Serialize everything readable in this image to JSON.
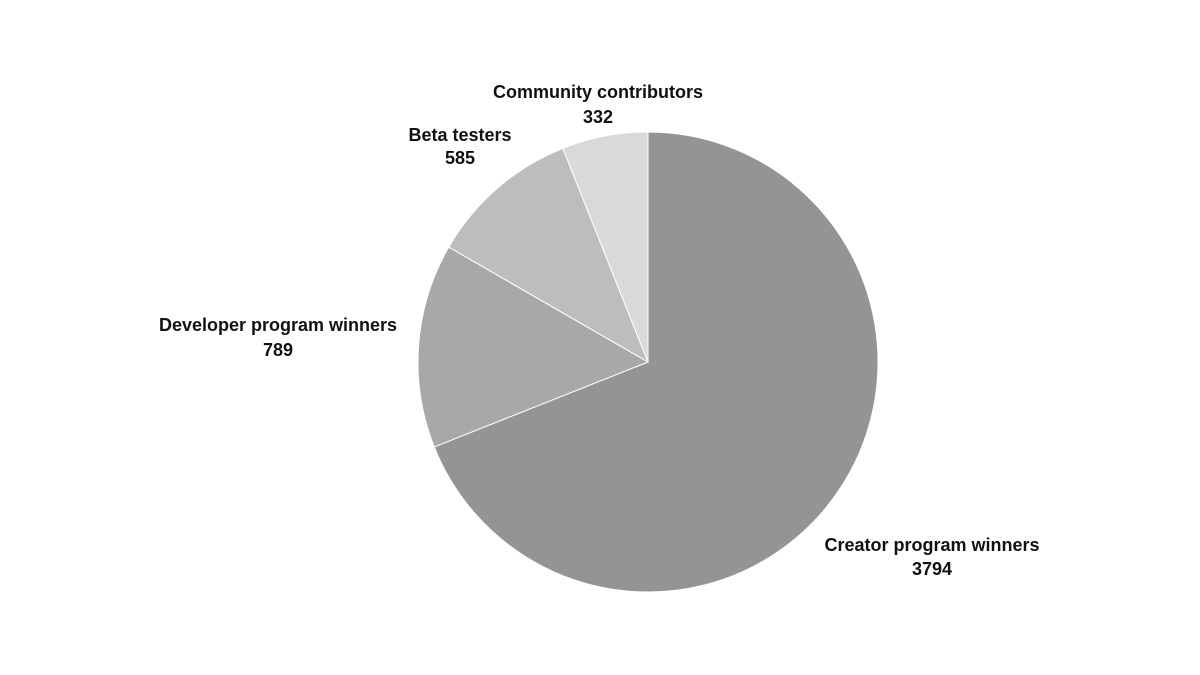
{
  "chart_data": {
    "type": "pie",
    "title": "",
    "labels": [
      "Creator program winners",
      "Developer program winners",
      "Beta testers",
      "Community contributors"
    ],
    "values": [
      3794,
      789,
      585,
      332
    ],
    "colors": [
      "#939495",
      "#a7a8aa",
      "#bcbdbf",
      "#d9d9d9"
    ],
    "start_angle_deg": 0,
    "direction": "clockwise",
    "legend": "none",
    "data_labels": "outside, category name and value"
  }
}
